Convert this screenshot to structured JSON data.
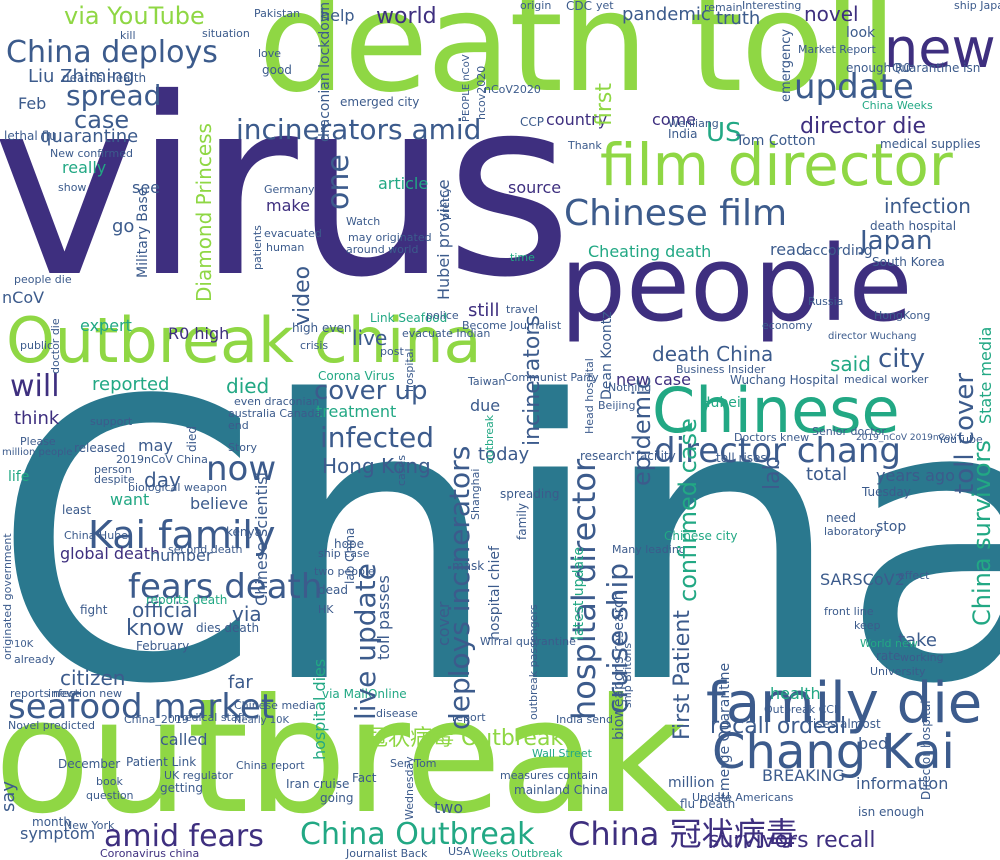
{
  "palette": {
    "indigo": "#3e2f7f",
    "slate": "#3c5b8c",
    "teal": "#2a788e",
    "mint": "#22a884",
    "lime": "#8fd744"
  },
  "words": {
    "china": "China",
    "virus": "virus",
    "outbreak": "outbreak",
    "death_toll": "death toll",
    "people": "people",
    "outbreak_china": "Outbreak china",
    "film_director": "film director",
    "chinese": "Chinese",
    "family_die": "family die",
    "chang_kai": "Chang Kai",
    "new": "new",
    "chinese_film": "Chinese film",
    "kai_family": "Kai family",
    "fears_death": "fears death",
    "hospital_director": "hospital director",
    "deploys_incinerators": "deploys incinerators",
    "director_chang": "director chang",
    "seafood_market": "seafood market",
    "amid_fears": "amid fears",
    "china_outbreak": "China Outbreak",
    "china_guanzhuang": "China 冠状病毒",
    "guanzhuang_outbreak": "冠状病毒 Outbreak",
    "incinerators_amid": "incinerators amid",
    "china_deploys": "China deploys",
    "spread": "spread",
    "update": "update",
    "will": "will",
    "now": "now",
    "infected": "infected",
    "cover_up": "cover up",
    "live_update": "live update",
    "cruise_ship": "cruise ship",
    "first_patient": "First Patient",
    "recall_ordeal": "recall ordeal",
    "survivors_recall": "survivors recall",
    "toll_cover": "toll cover",
    "china_survivors": "China survivors",
    "director_die": "director die",
    "via_youtube": "via YouTube",
    "world": "world",
    "case": "case",
    "hong_kong": "Hong Kong",
    "japan": "Japan",
    "city": "city",
    "said": "said",
    "infection": "infection",
    "diamond_princess": "Diamond Princess",
    "know": "know",
    "official": "official",
    "via": "via",
    "day": "day",
    "reported": "reported",
    "died": "died",
    "lab": "lab",
    "epidemic": "epidemic",
    "confirmed_case": "confirmed case",
    "new_case": "new case",
    "death_china": "death China",
    "citizen": "citizen",
    "information": "information",
    "breaking": "BREAKING",
    "us": "US",
    "one": "one",
    "quarantine": "quarantine",
    "liu_zhiming": "Liu Zhiming",
    "novel": "novel",
    "truth": "truth",
    "pandemic": "pandemic",
    "help": "help",
    "make": "make",
    "tom_cotton": "Tom Cotton",
    "country": "country",
    "source": "source",
    "come": "come",
    "first": "first",
    "video": "video",
    "still": "still",
    "live": "live",
    "today": "today",
    "r0_high": "R0 high",
    "expert": "expert",
    "think": "think",
    "global_death": "global death",
    "number": "number",
    "believe": "believe",
    "want": "want",
    "sarscov2": "SARSCoV2",
    "years_ago": "years ago",
    "total": "total",
    "far": "far",
    "treatment": "treatment",
    "hubei_province": "Hubei province",
    "cheating_death": "Cheating death",
    "say": "say",
    "symptom": "symptom",
    "called": "called",
    "bed": "bed",
    "state_media": "State media",
    "wuchang_hospital": "Wuchang Hospital",
    "corona_virus": "Corona Virus",
    "chinese_scientist": "Chinese scientist",
    "military_base": "Military Base",
    "ncov": "nCoV",
    "feb": "Feb",
    "hospital_dies": "hospital dies",
    "toll_passes": "toll passes",
    "cover": "cover",
    "go": "go",
    "see": "see",
    "article": "article",
    "health": "health",
    "emerge_quarantine": "Emerge Quarantine",
    "director_hospital": "Director hospital",
    "take": "take",
    "read": "read",
    "according": "according",
    "dean_koontz": "Dean Koontz",
    "bioweapons_research": "bioweapons research",
    "look": "look",
    "incinerators": "incinerators",
    "lethal_flu": "lethal flu",
    "deaths_health": "deaths Health",
    "really": "really",
    "spreading": "spreading",
    "may": "may",
    "died2": "died",
    "due": "due",
    "fact": "Fact",
    "million": "million",
    "two": "two",
    "death_hospital": "death hospital",
    "south_korea": "South Korea",
    "outbreak_small": "outbreak",
    "emergency": "emergency",
    "mainland_china": "mainland China",
    "going": "going",
    "getting": "getting",
    "december": "December",
    "february": "February",
    "iran_cruise": "Iran cruise",
    "patient_link": "Patient Link",
    "coronavirus_china": "Coronavirus china",
    "journalist_back": "Journalist Back",
    "weeks_outbreak": "Weeks Outbreak",
    "usa": "USA",
    "new_york": "New York",
    "month": "month",
    "wednesday": "Wednesday",
    "2019ncov_china": "2019nCoV China",
    "biological_weapon": "biological weapon",
    "people_die": "people die",
    "hubei": "Hubei",
    "emerged_city": "emerged city",
    "draconian_lockdown": "draconian lockdown",
    "high_even": "high even",
    "ccp": "CCP",
    "medical_supplies": "medical supplies",
    "quarantine_isn": "Quarantine isn",
    "enough_r0": "enough R0",
    "latest_update": "latest update",
    "reports_death": "reports death",
    "dies_death": "dies death",
    "rises_almost": "rises almost",
    "flu_death": "flu Death",
    "isn_enough": "isn enough",
    "update_americans": "Update Americans",
    "toll_rises": "toll rises",
    "research_facility": "research facility",
    "hospital_chief": "hospital chief",
    "lab_china": "lab China",
    "chinese_city": "Chinese city",
    "many_leading": "Many leading",
    "second_death": "second death",
    "via_mailonline": "via MailOnline",
    "doctor_die": "doctor die",
    "link_seafood": "Link Seafood",
    "become_journalist": "Become Journalist",
    "business_insider": "Business Insider",
    "medical_worker": "medical worker",
    "evacuate_indian": "evacuate Indian",
    "australia_canada": "australia Canada",
    "front_line": "front line",
    "stop": "stop",
    "need": "need",
    "laboratory": "laboratory",
    "university": "University",
    "pakistan": "Pakistan",
    "kill": "kill",
    "situation": "situation",
    "remain": "remain",
    "interesting": "Interesting",
    "ship_japan": "ship Japan",
    "market_report": "Market Report",
    "china_weeks": "China Weeks",
    "leave": "leave",
    "youtube": "YouTube",
    "tuesday": "Tuesday",
    "mask": "mask",
    "hope": "hope",
    "dead": "dead",
    "public": "public",
    "life": "life",
    "least": "least",
    "fight": "fight",
    "release": "released",
    "support": "support",
    "person": "person",
    "despite": "despite",
    "new_confirmed": "New confirmed",
    "yet": "yet",
    "origin": "origin",
    "show": "show",
    "crisis": "crisis",
    "patients": "patients",
    "evacuated": "evacuated",
    "human": "human",
    "germany": "Germany",
    "watch": "Watch",
    "around_world": "around world",
    "may_originated": "may originated",
    "thank": "Thank",
    "india": "India",
    "wenliang": "Wenliang",
    "taiwan": "Taiwan",
    "post": "post",
    "police": "police",
    "travel": "travel",
    "communist_party": "Communist Party",
    "even_draconian": "even draconian",
    "end": "end",
    "kenya": "kenya",
    "2019_ncov_ncov": "2019_nCoV 2019nCoV",
    "senior_doctor": "Senior doctor",
    "doctors_knew": "Doctors knew",
    "effect": "effect",
    "keep": "keep",
    "rate": "rate",
    "working": "working",
    "world_new": "World new",
    "hk": "HK",
    "two_people": "two people",
    "ship_case": "ship case",
    "disease": "disease",
    "report": "report",
    "sen_tom": "Sen Tom",
    "wall_street": "Wall Street",
    "india_send": "India send",
    "measures_contain": "measures contain",
    "outbreak_ccp": "Outbreak CCP",
    "outbreak_passengers": "outbreak passengers",
    "wirral_quarantine": "Wirral quarantine",
    "china_2019": "China_2019",
    "medical_staff": "medical staff",
    "china_media": "Chinese media",
    "infection_new": "infection new",
    "reports_new": "reports new",
    "novel_predicted": "Novel predicted",
    "already": "already",
    "family": "family",
    "hospital": "hospital",
    "please": "Please",
    "million_people": "million people",
    "cdc": "CDC",
    "cases": "cases",
    "pretty": "pretty",
    "shanghai": "Shanghai",
    "china_hubei": "China Hubei",
    "uk_regulator": "UK regulator",
    "china_report": "China report",
    "book": "book",
    "question": "question",
    "story": "Story",
    "originated_government": "originated government",
    "10k": "10K",
    "tuesday2": "Nearly 10K",
    "beijing": "Beijing",
    "nothing": "Nothing",
    "head_hospital": "Head hospital",
    "ship_britons": "ship Britons",
    "time": "time",
    "good": "good",
    "love": "love",
    "russia": "Russia",
    "hongkong": "HongKong",
    "director_wuchang": "director Wuchang",
    "ncov2020": "nCoV2020",
    "ncov2020b": "ncov2020",
    "economy": "economy",
    "people_ncov": "PEOPLE nCoV"
  }
}
